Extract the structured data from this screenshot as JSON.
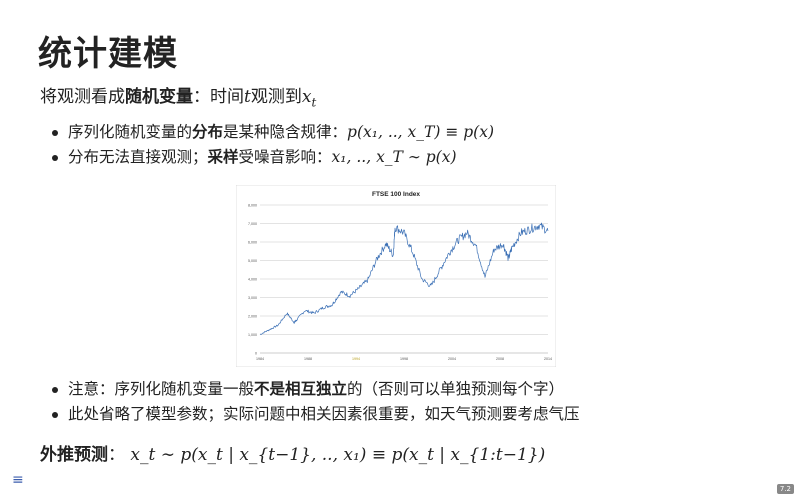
{
  "slide": {
    "title": "统计建模",
    "intro": {
      "pre": "将观测看成",
      "bold": "随机变量",
      "post": "：时间",
      "t": "t",
      "mid": "观测到",
      "x": "x",
      "sub": "t"
    },
    "bullets1": [
      {
        "pre": "序列化随机变量的",
        "bold": "分布",
        "post": "是某种隐含规律：",
        "math": "p(x₁, .., x_T) ≡ p(x)"
      },
      {
        "pre": "分布无法直接观测；",
        "bold": "采样",
        "post": "受噪音影响：",
        "math": "x₁, .., x_T ∼ p(x)"
      }
    ],
    "bullets2": [
      {
        "pre": "注意：序列化随机变量一般",
        "bold": "不是相互独立",
        "post": "的（否则可以单独预测每个字）"
      },
      {
        "pre": "此处省略了模型参数；实际问题中相关因素很重要，如天气预测要考虑气压"
      }
    ],
    "predict": {
      "label": "外推预测",
      "sep": "：",
      "math": "x_t ∼ p(x_t | x_{t−1}, .., x₁) ≡ p(x_t | x_{1:t−1})"
    },
    "page_number": "7.2",
    "menu_icon": "menu-icon"
  },
  "chart_data": {
    "type": "line",
    "title": "FTSE 100 Index",
    "xlabel": "",
    "ylabel": "",
    "x_tick_labels": [
      "1984",
      "1988",
      "1994",
      "1998",
      "2004",
      "2008",
      "2014"
    ],
    "y_tick_labels": [
      "0",
      "1,000",
      "2,000",
      "3,000",
      "4,000",
      "5,000",
      "6,000",
      "7,000",
      "8,000"
    ],
    "ylim": [
      0,
      8000
    ],
    "xlim": [
      1984,
      2016
    ],
    "series": [
      {
        "name": "FTSE 100",
        "color": "#3a6fb5",
        "points": [
          [
            1984,
            1000
          ],
          [
            1985,
            1250
          ],
          [
            1986,
            1500
          ],
          [
            1987,
            2150
          ],
          [
            1987.8,
            1650
          ],
          [
            1988,
            1750
          ],
          [
            1989,
            2300
          ],
          [
            1990,
            2150
          ],
          [
            1991,
            2450
          ],
          [
            1992,
            2600
          ],
          [
            1993,
            3300
          ],
          [
            1994,
            3100
          ],
          [
            1995,
            3500
          ],
          [
            1996,
            3950
          ],
          [
            1997,
            5100
          ],
          [
            1998,
            5900
          ],
          [
            1998.8,
            5300
          ],
          [
            1999,
            6800
          ],
          [
            2000,
            6500
          ],
          [
            2001,
            5400
          ],
          [
            2002,
            4000
          ],
          [
            2003,
            3600
          ],
          [
            2004,
            4500
          ],
          [
            2005,
            5400
          ],
          [
            2006,
            6100
          ],
          [
            2007,
            6500
          ],
          [
            2008,
            5800
          ],
          [
            2009,
            4100
          ],
          [
            2010,
            5600
          ],
          [
            2011,
            5900
          ],
          [
            2011.6,
            5100
          ],
          [
            2012,
            5700
          ],
          [
            2013,
            6500
          ],
          [
            2014,
            6700
          ],
          [
            2015,
            6900
          ],
          [
            2016,
            6600
          ]
        ]
      }
    ],
    "grid": true,
    "legend": "none"
  }
}
